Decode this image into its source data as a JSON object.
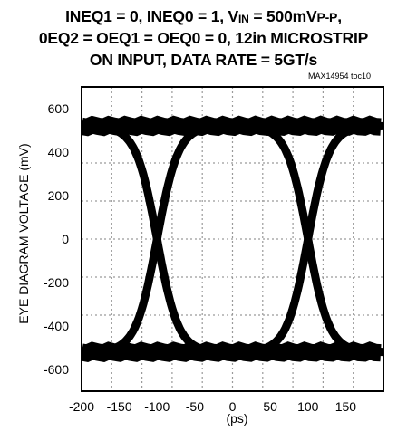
{
  "title": {
    "line1_a": "INEQ1 = 0, INEQ0 = 1, V",
    "line1_sub": "IN",
    "line1_b": " = 500mV",
    "line1_sc": "P-P",
    "line1_c": ",",
    "line2": "0EQ2 = OEQ1 = OEQ0 = 0, 12in MICROSTRIP",
    "line3": "ON INPUT, DATA RATE = 5GT/s"
  },
  "figure_code": "MAX14954 toc10",
  "chart_data": {
    "type": "eye diagram",
    "xlabel": "(ps)",
    "ylabel": "EYE DIAGRAM VOLTAGE (mV)",
    "xlim": [
      -200,
      200
    ],
    "ylim": [
      -700,
      700
    ],
    "x_ticks": [
      -200,
      -150,
      -100,
      -50,
      0,
      50,
      100,
      150
    ],
    "y_ticks": [
      600,
      400,
      200,
      0,
      -200,
      -400,
      -600
    ],
    "grid": true,
    "unit_interval_ps": 200,
    "crossing_points_ps": [
      -100,
      100
    ],
    "crossing_voltage_mv": 0,
    "high_level_mv": [
      480,
      560
    ],
    "low_level_mv": [
      -560,
      -480
    ]
  }
}
